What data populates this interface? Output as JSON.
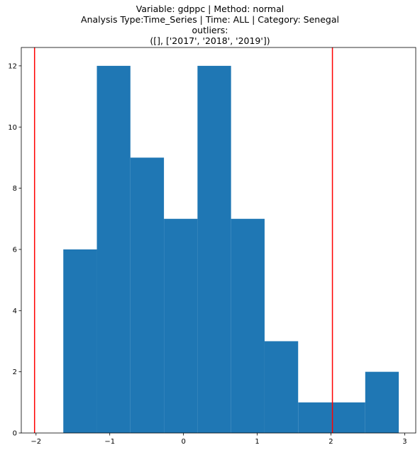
{
  "chart_data": {
    "type": "bar",
    "title_lines": [
      "Variable: gdppc | Method: normal",
      "Analysis Type:Time_Series | Time: ALL | Category: Senegal",
      "outliers:",
      "([], ['2017', '2018', '2019'])"
    ],
    "xlabel": "",
    "ylabel": "",
    "bins": [
      {
        "x0": -1.63,
        "x1": -1.175,
        "count": 6
      },
      {
        "x0": -1.175,
        "x1": -0.72,
        "count": 12
      },
      {
        "x0": -0.72,
        "x1": -0.265,
        "count": 9
      },
      {
        "x0": -0.265,
        "x1": 0.19,
        "count": 7
      },
      {
        "x0": 0.19,
        "x1": 0.645,
        "count": 12
      },
      {
        "x0": 0.645,
        "x1": 1.1,
        "count": 7
      },
      {
        "x0": 1.1,
        "x1": 1.555,
        "count": 3
      },
      {
        "x0": 1.555,
        "x1": 2.01,
        "count": 1
      },
      {
        "x0": 2.01,
        "x1": 2.465,
        "count": 1
      },
      {
        "x0": 2.465,
        "x1": 2.92,
        "count": 2
      }
    ],
    "vlines": [
      -2.02,
      2.02
    ],
    "xlim": [
      -2.2,
      3.15
    ],
    "ylim": [
      0,
      12.6
    ],
    "xticks": [
      -2,
      -1,
      0,
      1,
      2,
      3
    ],
    "xtick_labels": [
      "−2",
      "−1",
      "0",
      "1",
      "2",
      "3"
    ],
    "yticks": [
      0,
      2,
      4,
      6,
      8,
      10,
      12
    ],
    "ytick_labels": [
      "0",
      "2",
      "4",
      "6",
      "8",
      "10",
      "12"
    ],
    "grid": false,
    "bar_color": "#1f77b4",
    "vline_color": "#ff0000"
  }
}
